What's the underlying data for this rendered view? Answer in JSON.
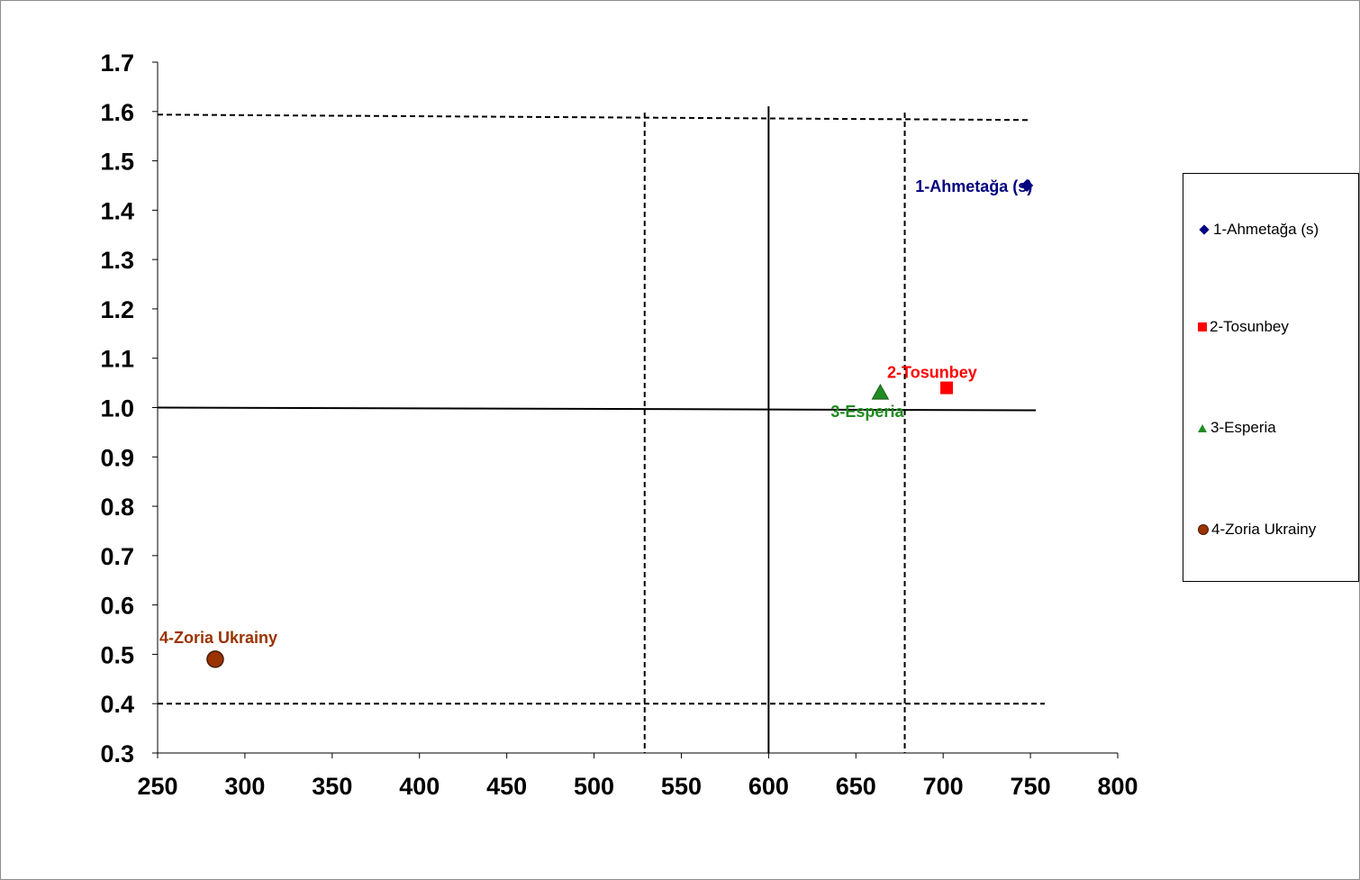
{
  "chart_data": {
    "type": "scatter",
    "title": "",
    "xlabel": "",
    "ylabel": "",
    "xlim": [
      250,
      800
    ],
    "ylim": [
      0.3,
      1.7
    ],
    "x_ticks": [
      "250",
      "300",
      "350",
      "400",
      "450",
      "500",
      "550",
      "600",
      "650",
      "700",
      "750",
      "800"
    ],
    "y_ticks": [
      "0.3",
      "0.4",
      "0.5",
      "0.6",
      "0.7",
      "0.8",
      "0.9",
      "1.0",
      "1.1",
      "1.2",
      "1.3",
      "1.4",
      "1.5",
      "1.6",
      "1.7"
    ],
    "grid": false,
    "legend_position": "right",
    "series": [
      {
        "name": "1-Ahmetağa (s)",
        "label": "1-Ahmetağa (s)",
        "x": 748,
        "y": 1.45,
        "marker": "diamond",
        "color": "#000080"
      },
      {
        "name": "2-Tosunbey",
        "label": "2-Tosunbey",
        "x": 702,
        "y": 1.04,
        "marker": "square",
        "color": "#ff0000"
      },
      {
        "name": "3-Esperia",
        "label": "3-Esperia",
        "x": 664,
        "y": 1.03,
        "marker": "triangle",
        "color": "#218c21"
      },
      {
        "name": "4-Zoria Ukrainy",
        "label": "4-Zoria Ukrainy",
        "x": 283,
        "y": 0.49,
        "marker": "circle",
        "color": "#993300"
      }
    ],
    "reference_lines": {
      "solid_vertical_x": 600,
      "solid_horizontal_y": 1.0,
      "dashed_vertical_x": [
        529,
        678
      ],
      "dashed_horizontal_y": [
        1.59,
        0.4
      ]
    }
  },
  "legend": {
    "items": [
      {
        "label": "1-Ahmetağa (s)",
        "marker": "diamond",
        "color": "#000080"
      },
      {
        "label": "2-Tosunbey",
        "marker": "square",
        "color": "#ff0000"
      },
      {
        "label": "3-Esperia",
        "marker": "triangle",
        "color": "#218c21"
      },
      {
        "label": "4-Zoria Ukrainy",
        "marker": "circle",
        "color": "#993300"
      }
    ]
  }
}
